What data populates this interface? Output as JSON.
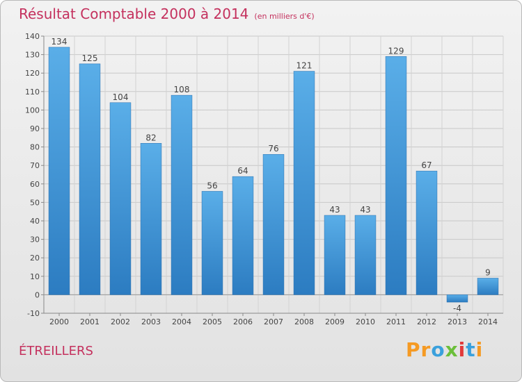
{
  "header": {
    "title": "Résultat Comptable 2000 à 2014",
    "subtitle": "(en milliers d'€)"
  },
  "footer": {
    "commune": "ÉTREILLERS",
    "brand": "Proxiti",
    "brand_letters": [
      "P",
      "r",
      "o",
      "x",
      "i",
      "t",
      "i"
    ],
    "brand_colors": [
      "#f59a23",
      "#f59a23",
      "#3aa0dc",
      "#6bbf3a",
      "#e23a3a",
      "#3aa0dc",
      "#f59a23"
    ]
  },
  "colors": {
    "title": "#c4305d",
    "bar_light": "#5aaee8",
    "bar_dark": "#2c7cc1",
    "background_top": "#f2f2f2",
    "background_bottom": "#e2e2e2"
  },
  "chart_data": {
    "type": "bar",
    "title": "Résultat Comptable 2000 à 2014",
    "subtitle": "(en milliers d'€)",
    "xlabel": "",
    "ylabel": "",
    "categories": [
      "2000",
      "2001",
      "2002",
      "2003",
      "2004",
      "2005",
      "2006",
      "2007",
      "2008",
      "2009",
      "2010",
      "2011",
      "2012",
      "2013",
      "2014"
    ],
    "values": [
      134,
      125,
      104,
      82,
      108,
      56,
      64,
      76,
      121,
      43,
      43,
      129,
      67,
      -4,
      9
    ],
    "ylim": [
      -10,
      140
    ],
    "yticks": [
      -10,
      0,
      10,
      20,
      30,
      40,
      50,
      60,
      70,
      80,
      90,
      100,
      110,
      120,
      130,
      140
    ],
    "grid": true,
    "legend": "none"
  }
}
